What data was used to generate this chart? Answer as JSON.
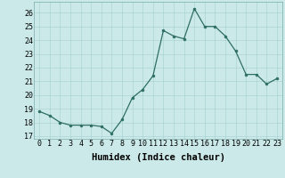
{
  "x": [
    0,
    1,
    2,
    3,
    4,
    5,
    6,
    7,
    8,
    9,
    10,
    11,
    12,
    13,
    14,
    15,
    16,
    17,
    18,
    19,
    20,
    21,
    22,
    23
  ],
  "y": [
    18.8,
    18.5,
    18.0,
    17.8,
    17.8,
    17.8,
    17.7,
    17.2,
    18.2,
    19.8,
    20.4,
    21.4,
    24.7,
    24.3,
    24.1,
    26.3,
    25.0,
    25.0,
    24.3,
    23.2,
    21.5,
    21.5,
    20.8,
    21.2
  ],
  "xlabel": "Humidex (Indice chaleur)",
  "ylim": [
    16.8,
    26.8
  ],
  "yticks": [
    17,
    18,
    19,
    20,
    21,
    22,
    23,
    24,
    25,
    26
  ],
  "xticks": [
    0,
    1,
    2,
    3,
    4,
    5,
    6,
    7,
    8,
    9,
    10,
    11,
    12,
    13,
    14,
    15,
    16,
    17,
    18,
    19,
    20,
    21,
    22,
    23
  ],
  "line_color": "#2d6e65",
  "marker": "o",
  "marker_size": 2.0,
  "bg_color": "#cce9e9",
  "grid_color": "#aad4d4",
  "tick_fontsize": 6,
  "xlabel_fontsize": 7.5
}
